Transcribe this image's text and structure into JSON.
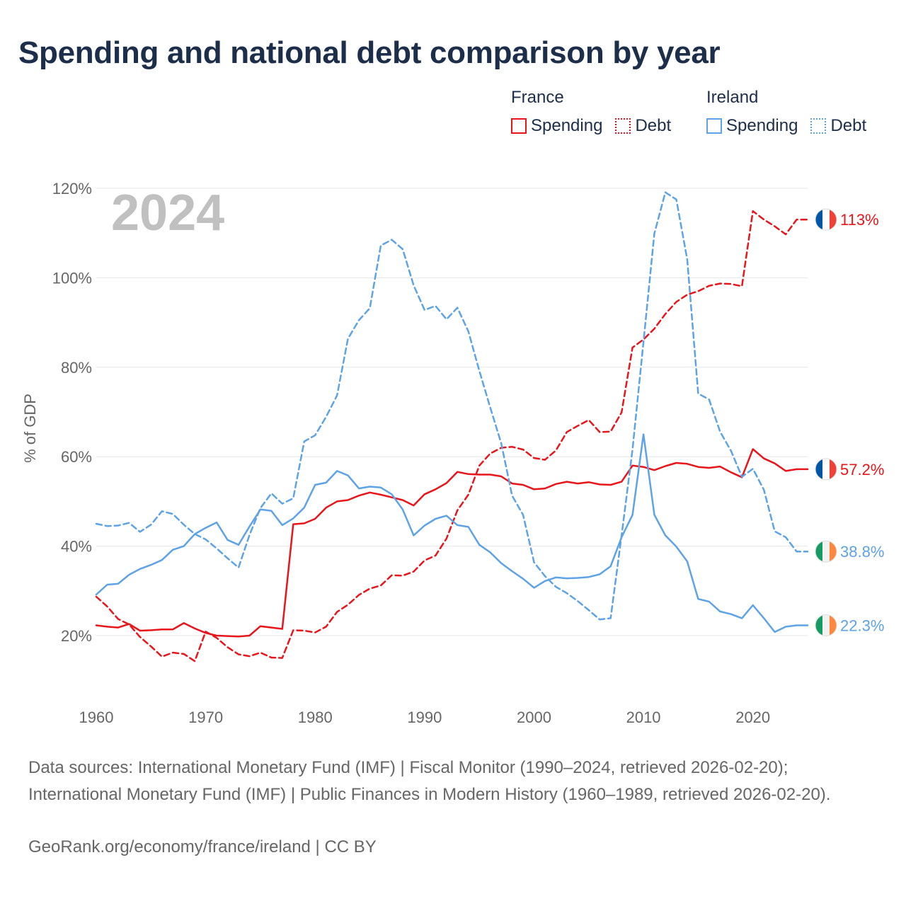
{
  "title": "Spending and national debt comparison by year",
  "legend": {
    "france": {
      "country": "France",
      "spending": "Spending",
      "debt": "Debt"
    },
    "ireland": {
      "country": "Ireland",
      "spending": "Spending",
      "debt": "Debt"
    }
  },
  "colors": {
    "france": "#e8151b",
    "ireland": "#5da3e6",
    "grid": "#e6e6e6",
    "axis_text": "#666666",
    "year_watermark": "#c0c0c0"
  },
  "footer": {
    "source": "Data sources: International Monetary Fund (IMF) | Fiscal Monitor (1990–2024, retrieved 2026-02-20); International Monetary Fund (IMF) | Public Finances in Modern History (1960–1989, retrieved 2026-02-20).",
    "attribution": "GeoRank.org/economy/france/ireland | CC BY"
  },
  "chart_data": {
    "type": "line",
    "title": "Spending and national debt comparison by year",
    "xlabel": "",
    "ylabel": "% of GDP",
    "year_label": "2024",
    "xlim": [
      1960,
      2025
    ],
    "ylim": [
      12,
      125
    ],
    "xticks": [
      1960,
      1970,
      1980,
      1990,
      2000,
      2010,
      2020
    ],
    "yticks": [
      20,
      40,
      60,
      80,
      100,
      120
    ],
    "ytick_labels": [
      "20%",
      "40%",
      "60%",
      "80%",
      "100%",
      "120%"
    ],
    "grid": true,
    "x": [
      1960,
      1961,
      1962,
      1963,
      1964,
      1965,
      1966,
      1967,
      1968,
      1969,
      1970,
      1971,
      1972,
      1973,
      1974,
      1975,
      1976,
      1977,
      1978,
      1979,
      1980,
      1981,
      1982,
      1983,
      1984,
      1985,
      1986,
      1987,
      1988,
      1989,
      1990,
      1991,
      1992,
      1993,
      1994,
      1995,
      1996,
      1997,
      1998,
      1999,
      2000,
      2001,
      2002,
      2003,
      2004,
      2005,
      2006,
      2007,
      2008,
      2009,
      2010,
      2011,
      2012,
      2013,
      2014,
      2015,
      2016,
      2017,
      2018,
      2019,
      2020,
      2021,
      2022,
      2023,
      2024
    ],
    "series": [
      {
        "name": "France Spending",
        "country": "france",
        "dash": false,
        "end_label": "57.2%",
        "values": [
          22.3,
          22.0,
          21.8,
          22.6,
          21.1,
          21.2,
          21.4,
          21.4,
          22.8,
          21.6,
          20.6,
          20.0,
          19.9,
          19.8,
          20.0,
          22.1,
          21.8,
          21.5,
          44.9,
          45.1,
          46.1,
          48.6,
          50.0,
          50.3,
          51.3,
          52.0,
          51.5,
          50.9,
          50.3,
          49.1,
          51.6,
          52.7,
          54.1,
          56.6,
          56.1,
          56.0,
          56.0,
          55.6,
          54.0,
          53.7,
          52.7,
          52.9,
          53.9,
          54.4,
          54.0,
          54.3,
          53.8,
          53.7,
          54.4,
          58.0,
          57.7,
          57.0,
          57.9,
          58.6,
          58.4,
          57.7,
          57.5,
          57.8,
          56.5,
          55.4,
          61.7,
          59.6,
          58.5,
          56.8,
          57.2
        ]
      },
      {
        "name": "France Debt",
        "country": "france",
        "dash": true,
        "end_label": "113%",
        "values": [
          28.7,
          26.5,
          23.7,
          22.5,
          19.7,
          17.6,
          15.3,
          16.2,
          15.9,
          14.3,
          20.9,
          19.5,
          17.4,
          15.8,
          15.4,
          16.2,
          15.1,
          15.0,
          21.2,
          21.1,
          20.7,
          22.0,
          25.3,
          26.9,
          29.1,
          30.5,
          31.2,
          33.5,
          33.4,
          34.3,
          36.8,
          37.9,
          41.7,
          48.0,
          51.5,
          58.0,
          60.7,
          62.0,
          62.2,
          61.6,
          59.7,
          59.3,
          61.4,
          65.5,
          66.9,
          68.2,
          65.5,
          65.6,
          69.9,
          84.4,
          86.2,
          88.6,
          91.9,
          94.6,
          96.2,
          97.0,
          98.2,
          98.7,
          98.6,
          98.1,
          114.9,
          113.0,
          111.5,
          109.7,
          113.0
        ]
      },
      {
        "name": "Ireland Spending",
        "country": "ireland",
        "dash": false,
        "end_label": "22.3%",
        "values": [
          29.2,
          31.4,
          31.6,
          33.6,
          34.9,
          35.8,
          36.9,
          39.2,
          40.0,
          42.7,
          44.1,
          45.3,
          41.4,
          40.3,
          44.4,
          48.2,
          47.9,
          44.7,
          46.2,
          48.6,
          53.7,
          54.2,
          56.8,
          55.8,
          52.9,
          53.3,
          53.1,
          51.6,
          48.2,
          42.4,
          44.6,
          46.1,
          46.8,
          44.7,
          44.3,
          40.3,
          38.6,
          36.2,
          34.4,
          32.7,
          30.7,
          32.2,
          33.0,
          32.8,
          32.9,
          33.1,
          33.7,
          35.5,
          42.0,
          47.0,
          65.0,
          47.0,
          42.4,
          39.9,
          36.6,
          28.2,
          27.6,
          25.4,
          24.8,
          23.9,
          26.8,
          23.9,
          20.8,
          22.0,
          22.3
        ]
      },
      {
        "name": "Ireland Debt",
        "country": "ireland",
        "dash": true,
        "end_label": "38.8%",
        "values": [
          45.0,
          44.5,
          44.6,
          45.2,
          43.2,
          44.8,
          47.8,
          47.2,
          44.8,
          42.7,
          41.5,
          39.5,
          37.3,
          35.2,
          42.5,
          48.5,
          51.8,
          49.5,
          50.7,
          63.4,
          64.8,
          68.9,
          73.7,
          86.4,
          90.5,
          93.2,
          107.2,
          108.5,
          106.4,
          98.3,
          92.8,
          93.7,
          90.7,
          93.3,
          88.0,
          79.2,
          71.0,
          63.0,
          51.3,
          47.0,
          36.4,
          33.3,
          30.9,
          29.5,
          27.7,
          25.7,
          23.6,
          23.9,
          42.4,
          61.6,
          85.6,
          109.9,
          119.1,
          117.5,
          104.1,
          74.1,
          72.8,
          65.6,
          61.3,
          55.5,
          57.3,
          52.6,
          43.3,
          42.0,
          38.8
        ]
      }
    ]
  }
}
